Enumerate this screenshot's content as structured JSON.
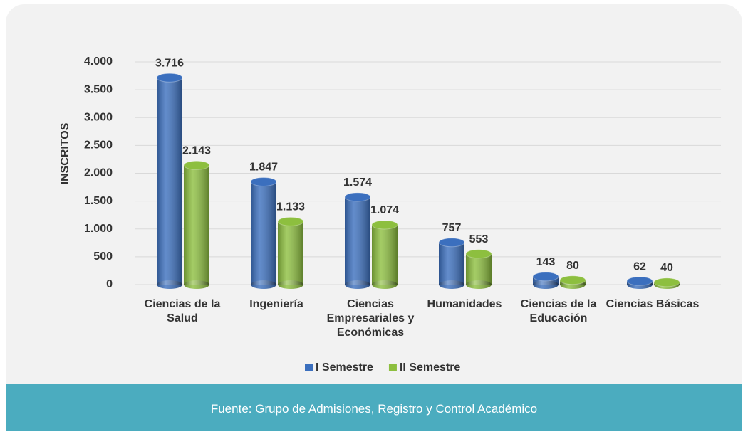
{
  "chart_data": {
    "type": "bar3d",
    "y_label": "INSCRITOS",
    "categories": [
      "Ciencias de la Salud",
      "Ingeniería",
      "Ciencias Empresariales y Económicas",
      "Humanidades",
      "Ciencias de la Educación",
      "Ciencias Básicas"
    ],
    "series": [
      {
        "name": "I Semestre",
        "color": "#3b6fbe",
        "values": [
          3716,
          1847,
          1574,
          757,
          143,
          62
        ],
        "value_labels": [
          "3.716",
          "1.847",
          "1.574",
          "757",
          "143",
          "62"
        ]
      },
      {
        "name": "II Semestre",
        "color": "#8dbf3f",
        "values": [
          2143,
          1133,
          1074,
          553,
          80,
          40
        ],
        "value_labels": [
          "2.143",
          "1.133",
          "1.074",
          "553",
          "80",
          "40"
        ]
      }
    ],
    "ylim": [
      0,
      4000
    ],
    "yticks": [
      0,
      {
        "value": 500,
        "label": "500"
      },
      {
        "value": 1000,
        "label": "1.000"
      },
      {
        "value": 1500,
        "label": "1.500"
      },
      {
        "value": 2000,
        "label": "2.000"
      },
      {
        "value": 2500,
        "label": "2.500"
      },
      {
        "value": 3000,
        "label": "3.000"
      },
      {
        "value": 3500,
        "label": "3.500"
      },
      {
        "value": 4000,
        "label": "4.000"
      }
    ],
    "grid": true,
    "source": "Fuente: Grupo de Admisiones, Registro y Control Académico"
  }
}
